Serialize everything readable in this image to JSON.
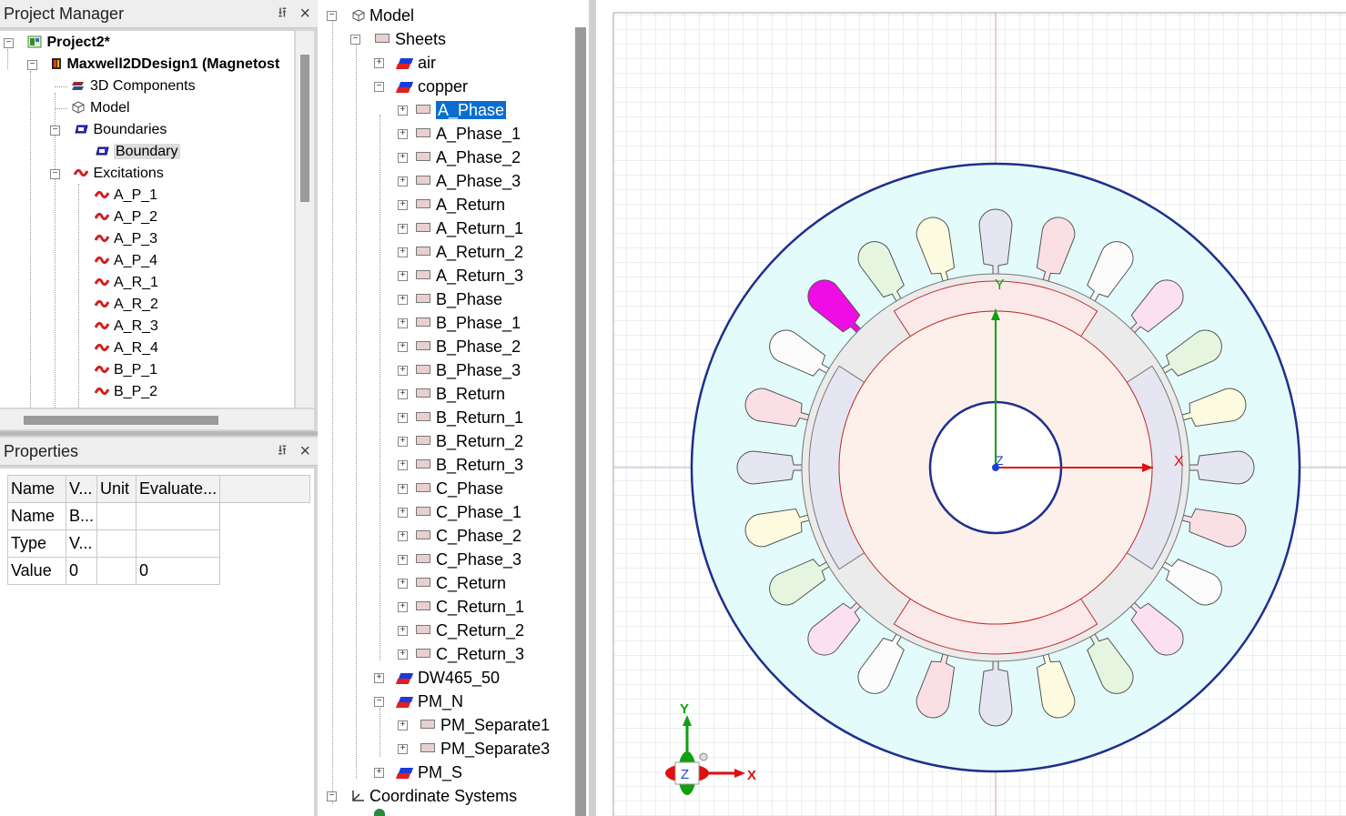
{
  "project_manager": {
    "title": "Project Manager",
    "pin": "⭿",
    "close": "×",
    "tree": {
      "project": "Project2*",
      "design": "Maxwell2DDesign1 (Magnetost",
      "components": "3D Components",
      "model": "Model",
      "boundaries": "Boundaries",
      "boundary": "Boundary",
      "excitations": "Excitations",
      "excitation_items": [
        "A_P_1",
        "A_P_2",
        "A_P_3",
        "A_P_4",
        "A_R_1",
        "A_R_2",
        "A_R_3",
        "A_R_4",
        "B_P_1",
        "B_P_2"
      ]
    }
  },
  "properties": {
    "title": "Properties",
    "pin": "⭿",
    "close": "×",
    "headers": [
      "Name",
      "V...",
      "Unit",
      "Evaluate..."
    ],
    "rows": [
      [
        "Name",
        "B...",
        "",
        ""
      ],
      [
        "Type",
        "V...",
        "",
        ""
      ],
      [
        "Value",
        "0",
        "",
        "0"
      ]
    ]
  },
  "model_tree": {
    "root": "Model",
    "sheets": "Sheets",
    "air": "air",
    "copper": "copper",
    "copper_items": [
      "A_Phase",
      "A_Phase_1",
      "A_Phase_2",
      "A_Phase_3",
      "A_Return",
      "A_Return_1",
      "A_Return_2",
      "A_Return_3",
      "B_Phase",
      "B_Phase_1",
      "B_Phase_2",
      "B_Phase_3",
      "B_Return",
      "B_Return_1",
      "B_Return_2",
      "B_Return_3",
      "C_Phase",
      "C_Phase_1",
      "C_Phase_2",
      "C_Phase_3",
      "C_Return",
      "C_Return_1",
      "C_Return_2",
      "C_Return_3"
    ],
    "selected_item": "A_Phase",
    "dw": "DW465_50",
    "pm_n": "PM_N",
    "pm_n_items": [
      "PM_Separate1",
      "PM_Separate3"
    ],
    "pm_s": "PM_S",
    "coord": "Coordinate Systems"
  },
  "viewport": {
    "axis_x": "X",
    "axis_y": "Y",
    "axis_z": "Z",
    "colors": {
      "stator_fill": "#e4fbfb",
      "outline": "#1f2f8a",
      "rotor_fill": "#fdf0ea",
      "gap_fill": "#ebebeb",
      "magnet_fill": "#e6e6f2",
      "slot_selected": "#f00ce4"
    },
    "slot_palette": [
      "#e6e6f2",
      "#fae0e4",
      "#fbfbfb",
      "#fae0f0",
      "#e6f5e0",
      "#fcfadf"
    ]
  }
}
